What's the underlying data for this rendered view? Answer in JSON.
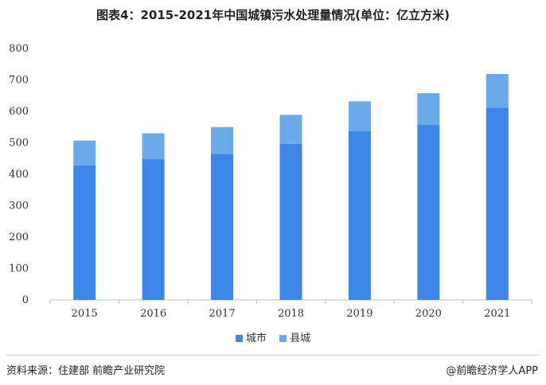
{
  "title": "图表4：2015-2021年中国城镇污水处理量情况(单位：亿立方米)",
  "colors": {
    "city": "#3b86e6",
    "county": "#6aa9ea",
    "axis": "#bbbbbb"
  },
  "chart_data": {
    "type": "bar",
    "stacked": true,
    "categories": [
      "2015",
      "2016",
      "2017",
      "2018",
      "2019",
      "2020",
      "2021"
    ],
    "series": [
      {
        "name": "城市",
        "values": [
          428,
          448,
          465,
          497,
          537,
          557,
          612
        ]
      },
      {
        "name": "县城",
        "values": [
          79,
          82,
          85,
          92,
          95,
          101,
          107
        ]
      }
    ],
    "yticks": [
      "0",
      "100",
      "200",
      "300",
      "400",
      "500",
      "600",
      "700",
      "800"
    ],
    "ylim": [
      0,
      800
    ],
    "grid": false,
    "legend_position": "bottom"
  },
  "source": "资料来源：住建部 前瞻产业研究院",
  "brand": "@前瞻经济学人APP"
}
